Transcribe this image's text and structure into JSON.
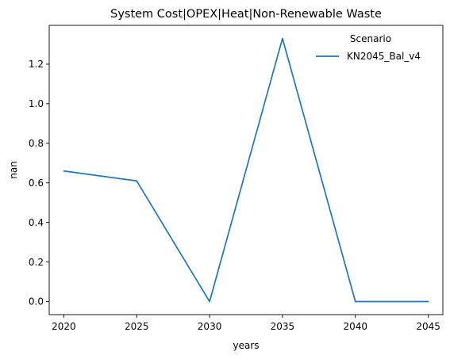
{
  "chart_data": {
    "type": "line",
    "title": "System Cost|OPEX|Heat|Non-Renewable Waste",
    "xlabel": "years",
    "ylabel": "nan",
    "x": [
      2020,
      2025,
      2030,
      2035,
      2040,
      2045
    ],
    "xticks": [
      "2020",
      "2025",
      "2030",
      "2035",
      "2040",
      "2045"
    ],
    "yticks": [
      "0.0",
      "0.2",
      "0.4",
      "0.6",
      "0.8",
      "1.0",
      "1.2"
    ],
    "xlim": [
      2019.0,
      2046.0
    ],
    "ylim": [
      -0.066,
      1.396
    ],
    "grid": false,
    "legend": {
      "title": "Scenario",
      "placement": "top-right"
    },
    "series": [
      {
        "name": "KN2045_Bal_v4",
        "color": "#1f77b4",
        "values": [
          0.66,
          0.61,
          0.0,
          1.33,
          0.0,
          0.0
        ]
      }
    ]
  }
}
